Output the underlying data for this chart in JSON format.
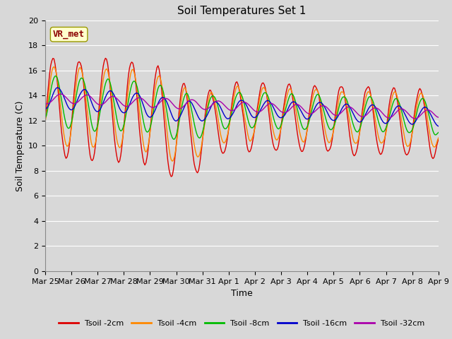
{
  "title": "Soil Temperatures Set 1",
  "xlabel": "Time",
  "ylabel": "Soil Temperature (C)",
  "annotation_text": "VR_met",
  "ylim": [
    0,
    20
  ],
  "yticks": [
    0,
    2,
    4,
    6,
    8,
    10,
    12,
    14,
    16,
    18,
    20
  ],
  "background_color": "#d8d8d8",
  "series_colors": {
    "Tsoil -2cm": "#dd0000",
    "Tsoil -4cm": "#ff8800",
    "Tsoil -8cm": "#00bb00",
    "Tsoil -16cm": "#0000cc",
    "Tsoil -32cm": "#aa00aa"
  },
  "xtick_labels": [
    "Mar 25",
    "Mar 26",
    "Mar 27",
    "Mar 28",
    "Mar 29",
    "Mar 30",
    "Mar 31",
    "Apr 1",
    "Apr 2",
    "Apr 3",
    "Apr 4",
    "Apr 5",
    "Apr 6",
    "Apr 7",
    "Apr 8",
    "Apr 9"
  ],
  "title_fontsize": 11,
  "axis_label_fontsize": 9,
  "tick_fontsize": 8,
  "legend_fontsize": 8,
  "line_width": 1.0
}
